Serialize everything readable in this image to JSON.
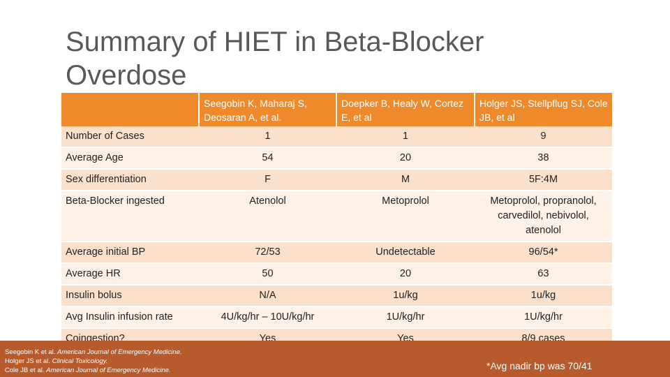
{
  "slide": {
    "title": "Summary of HIET in Beta-Blocker Overdose",
    "columns": [
      "",
      "Seegobin K, Maharaj S, Deosaran A, et al.",
      "Doepker B, Healy W, Cortez E, et al",
      "Holger JS, Stellpflug SJ, Cole JB, et al"
    ],
    "rows": [
      {
        "label": "Number of Cases",
        "values": [
          "1",
          "1",
          "9"
        ]
      },
      {
        "label": "Average Age",
        "values": [
          "54",
          "20",
          "38"
        ]
      },
      {
        "label": "Sex differentiation",
        "values": [
          "F",
          "M",
          "5F:4M"
        ]
      },
      {
        "label": "Beta-Blocker ingested",
        "values": [
          "Atenolol",
          "Metoprolol",
          "Metoprolol, propranolol, carvedilol, nebivolol, atenolol"
        ]
      },
      {
        "label": "Average initial BP",
        "values": [
          "72/53",
          "Undetectable",
          "96/54*"
        ]
      },
      {
        "label": "Average HR",
        "values": [
          "50",
          "20",
          "63"
        ]
      },
      {
        "label": "Insulin bolus",
        "values": [
          "N/A",
          "1u/kg",
          "1u/kg"
        ]
      },
      {
        "label": "Avg Insulin infusion rate",
        "values": [
          "4U/kg/hr – 10U/kg/hr",
          "1U/kg/hr",
          "1U/kg/hr"
        ]
      },
      {
        "label": "Coingestion?",
        "values": [
          "Yes",
          "Yes",
          "8/9 cases"
        ]
      }
    ],
    "references": [
      {
        "prefix": "Seegobin K et al. ",
        "journal": "American Journal of Emergency Medicine."
      },
      {
        "prefix": "Holger JS et al. ",
        "journal": "Clinical Toxicology."
      },
      {
        "prefix": "Cole JB et al. ",
        "journal": "American Journal of Emergency Medicine."
      }
    ],
    "footnote": "*Avg nadir bp was 70/41"
  },
  "colors": {
    "header_bg": "#ef8a2c",
    "row_odd": "#fbe1cc",
    "row_even": "#fdf1e8",
    "footer_bg": "#b75a2c",
    "title_text": "#595959"
  }
}
